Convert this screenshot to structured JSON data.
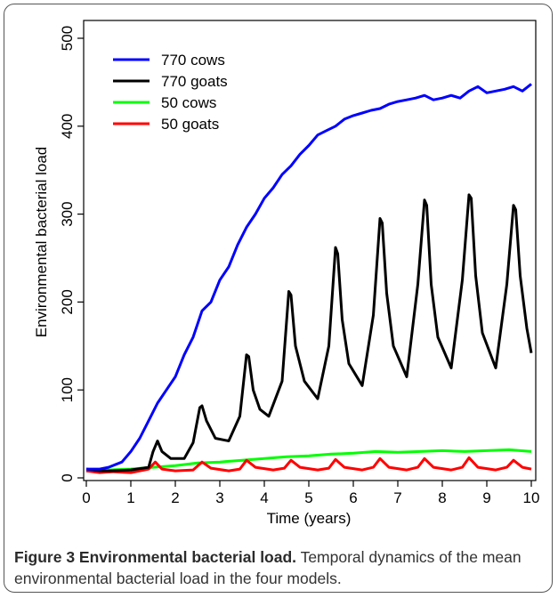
{
  "caption": {
    "figure_label": "Figure 3 Environmental bacterial load.",
    "text": " Temporal dynamics of the mean environmental bacterial load in the four models."
  },
  "chart_data": {
    "type": "line",
    "title": "",
    "xlabel": "Time (years)",
    "ylabel": "Environmental bacterial load",
    "xlim": [
      0,
      10
    ],
    "ylim": [
      0,
      500
    ],
    "xticks": [
      0,
      1,
      2,
      3,
      4,
      5,
      6,
      7,
      8,
      9,
      10
    ],
    "yticks": [
      0,
      100,
      200,
      300,
      400,
      500
    ],
    "grid": false,
    "legend_position": "top-left",
    "series": [
      {
        "name": "770 cows",
        "color": "#0000ff",
        "x": [
          0,
          0.3,
          0.5,
          0.8,
          1.0,
          1.2,
          1.4,
          1.6,
          1.8,
          2.0,
          2.2,
          2.4,
          2.6,
          2.8,
          3.0,
          3.2,
          3.4,
          3.6,
          3.8,
          4.0,
          4.2,
          4.4,
          4.6,
          4.8,
          5.0,
          5.2,
          5.4,
          5.6,
          5.8,
          6.0,
          6.2,
          6.4,
          6.6,
          6.8,
          7.0,
          7.2,
          7.4,
          7.6,
          7.8,
          8.0,
          8.2,
          8.4,
          8.6,
          8.8,
          9.0,
          9.2,
          9.4,
          9.6,
          9.8,
          10.0
        ],
        "values": [
          10,
          10,
          12,
          18,
          30,
          45,
          65,
          85,
          100,
          115,
          140,
          160,
          190,
          200,
          225,
          240,
          265,
          285,
          300,
          318,
          330,
          345,
          355,
          368,
          378,
          390,
          395,
          400,
          408,
          412,
          415,
          418,
          420,
          425,
          428,
          430,
          432,
          435,
          430,
          432,
          435,
          432,
          440,
          445,
          438,
          440,
          442,
          445,
          440,
          448
        ]
      },
      {
        "name": "770 goats",
        "color": "#000000",
        "x": [
          0,
          0.3,
          0.6,
          1.0,
          1.4,
          1.5,
          1.6,
          1.7,
          1.9,
          2.2,
          2.4,
          2.55,
          2.6,
          2.7,
          2.9,
          3.2,
          3.45,
          3.6,
          3.65,
          3.75,
          3.9,
          4.1,
          4.4,
          4.55,
          4.6,
          4.7,
          4.9,
          5.2,
          5.45,
          5.6,
          5.65,
          5.75,
          5.9,
          6.2,
          6.45,
          6.6,
          6.65,
          6.75,
          6.9,
          7.2,
          7.45,
          7.6,
          7.65,
          7.75,
          7.9,
          8.2,
          8.45,
          8.6,
          8.65,
          8.75,
          8.9,
          9.2,
          9.45,
          9.6,
          9.65,
          9.75,
          9.9,
          10.0
        ],
        "values": [
          10,
          8,
          8,
          9,
          12,
          30,
          42,
          30,
          22,
          22,
          40,
          80,
          82,
          65,
          45,
          42,
          70,
          140,
          138,
          100,
          78,
          70,
          110,
          212,
          208,
          150,
          110,
          90,
          150,
          262,
          255,
          180,
          130,
          105,
          185,
          295,
          290,
          210,
          150,
          115,
          220,
          316,
          310,
          220,
          160,
          125,
          225,
          322,
          318,
          230,
          165,
          125,
          220,
          310,
          305,
          230,
          170,
          142
        ]
      },
      {
        "name": "50 cows",
        "color": "#00ff00",
        "x": [
          0,
          0.5,
          1.0,
          1.5,
          2.0,
          2.5,
          3.0,
          3.5,
          4.0,
          4.5,
          5.0,
          5.5,
          6.0,
          6.5,
          7.0,
          7.5,
          8.0,
          8.5,
          9.0,
          9.5,
          10.0
        ],
        "values": [
          8,
          9,
          10,
          12,
          14,
          17,
          18,
          20,
          22,
          24,
          25,
          27,
          28,
          30,
          29,
          30,
          31,
          30,
          31,
          32,
          30
        ]
      },
      {
        "name": "50 goats",
        "color": "#ff0000",
        "x": [
          0,
          0.3,
          0.6,
          1.0,
          1.4,
          1.55,
          1.7,
          2.0,
          2.4,
          2.6,
          2.8,
          3.2,
          3.45,
          3.6,
          3.8,
          4.2,
          4.45,
          4.6,
          4.8,
          5.2,
          5.45,
          5.6,
          5.8,
          6.2,
          6.45,
          6.6,
          6.8,
          7.2,
          7.45,
          7.6,
          7.8,
          8.2,
          8.45,
          8.6,
          8.8,
          9.2,
          9.45,
          9.6,
          9.8,
          10.0
        ],
        "values": [
          8,
          6,
          7,
          6,
          10,
          18,
          10,
          8,
          9,
          18,
          11,
          8,
          10,
          20,
          12,
          9,
          11,
          20,
          12,
          9,
          11,
          21,
          12,
          9,
          12,
          22,
          12,
          9,
          12,
          22,
          12,
          9,
          12,
          23,
          12,
          9,
          12,
          20,
          12,
          10
        ]
      }
    ]
  }
}
